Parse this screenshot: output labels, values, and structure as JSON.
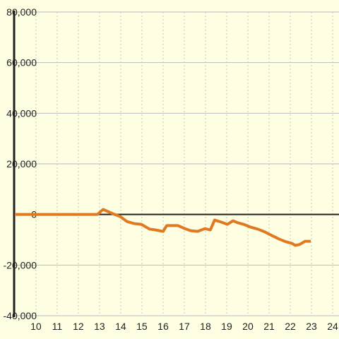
{
  "chart_data": {
    "type": "line",
    "series": [
      {
        "color": "#e07a22",
        "x": [
          9,
          12.9,
          13.17,
          13.63,
          13.97,
          14.3,
          14.63,
          14.97,
          15.2,
          15.37,
          15.63,
          16,
          16.17,
          16.7,
          17.03,
          17.3,
          17.63,
          17.97,
          18.23,
          18.43,
          18.77,
          19.03,
          19.3,
          19.53,
          19.8,
          20.13,
          20.47,
          20.8,
          21.13,
          21.47,
          21.8,
          22.07,
          22.23,
          22.43,
          22.7,
          22.97
        ],
        "values": [
          0,
          0,
          2000,
          300,
          -800,
          -2800,
          -3600,
          -3900,
          -5000,
          -5800,
          -6100,
          -6700,
          -4400,
          -4400,
          -5600,
          -6400,
          -6700,
          -5600,
          -6100,
          -2200,
          -3100,
          -3900,
          -2500,
          -3300,
          -3900,
          -5000,
          -5800,
          -6900,
          -8300,
          -9700,
          -10800,
          -11400,
          -12200,
          -11900,
          -10600,
          -10600
        ]
      }
    ],
    "xlim": [
      8.97,
      24.3
    ],
    "xticks": [
      10,
      11,
      12,
      13,
      14,
      15,
      16,
      17,
      18,
      19,
      20,
      21,
      22,
      23,
      24
    ],
    "ylim": [
      -40000,
      80000
    ],
    "yticks": [
      {
        "value": -40000,
        "label": "-40,000"
      },
      {
        "value": -20000,
        "label": "-20,000"
      },
      0,
      {
        "value": 20000,
        "label": "20,000"
      },
      {
        "value": 40000,
        "label": "40,000"
      },
      {
        "value": 60000,
        "label": "60,000"
      },
      {
        "value": 80000,
        "label": "80,000"
      }
    ],
    "grid": true
  }
}
